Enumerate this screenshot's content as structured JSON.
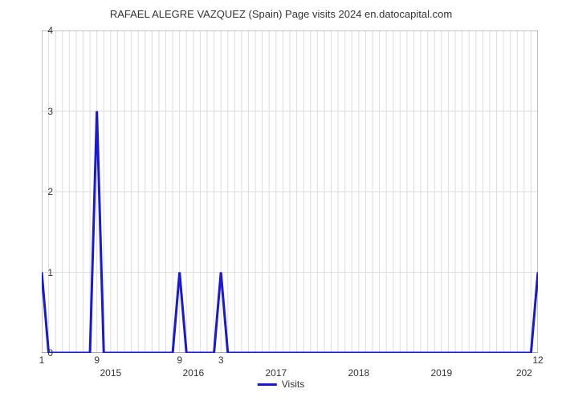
{
  "chart": {
    "type": "line",
    "title": "RAFAEL ALEGRE VAZQUEZ (Spain) Page visits 2024 en.datocapital.com",
    "title_fontsize": 13,
    "title_color": "#333333",
    "background_color": "#ffffff",
    "plot_bg": "#ffffff",
    "grid_color": "#dddddd",
    "axis_color": "#888888",
    "line_color": "#1818d6",
    "line_width": 3,
    "ylim": [
      0,
      4
    ],
    "yticks": [
      0,
      1,
      2,
      3,
      4
    ],
    "x_count": 73,
    "x_year_ticks": [
      {
        "label": "2015",
        "index": 10
      },
      {
        "label": "2016",
        "index": 22
      },
      {
        "label": "2017",
        "index": 34
      },
      {
        "label": "2018",
        "index": 46
      },
      {
        "label": "2019",
        "index": 58
      },
      {
        "label": "202",
        "index": 70
      }
    ],
    "x_value_labels": [
      {
        "label": "1",
        "index": 0
      },
      {
        "label": "9",
        "index": 8
      },
      {
        "label": "9",
        "index": 20
      },
      {
        "label": "3",
        "index": 26
      },
      {
        "label": "12",
        "index": 72
      }
    ],
    "series": {
      "name": "Visits",
      "y": [
        1,
        0,
        0,
        0,
        0,
        0,
        0,
        0,
        3,
        0,
        0,
        0,
        0,
        0,
        0,
        0,
        0,
        0,
        0,
        0,
        1,
        0,
        0,
        0,
        0,
        0,
        1,
        0,
        0,
        0,
        0,
        0,
        0,
        0,
        0,
        0,
        0,
        0,
        0,
        0,
        0,
        0,
        0,
        0,
        0,
        0,
        0,
        0,
        0,
        0,
        0,
        0,
        0,
        0,
        0,
        0,
        0,
        0,
        0,
        0,
        0,
        0,
        0,
        0,
        0,
        0,
        0,
        0,
        0,
        0,
        0,
        0,
        1
      ]
    },
    "legend": {
      "label": "Visits",
      "color": "#1818d6",
      "line_width": 3
    }
  }
}
